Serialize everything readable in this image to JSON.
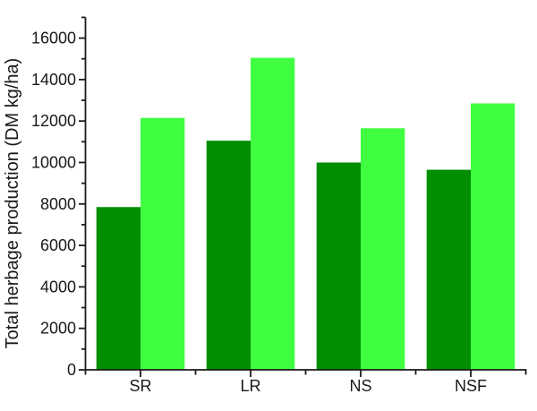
{
  "chart_data": {
    "type": "bar",
    "title": "",
    "xlabel": "",
    "ylabel": "Total herbage production (DM kg/ha)",
    "categories": [
      "SR",
      "LR",
      "NS",
      "NSF"
    ],
    "series": [
      {
        "name": "dark-green-series",
        "color": "#008f00",
        "values": [
          7850,
          11050,
          10000,
          9650
        ]
      },
      {
        "name": "light-green-series",
        "color": "#40ff40",
        "values": [
          12150,
          15050,
          11650,
          12850
        ]
      }
    ],
    "ylim": [
      0,
      17000
    ],
    "y_major_step": 2000,
    "y_minor_step": 1000,
    "y_tick_labels": [
      "0",
      "2000",
      "4000",
      "6000",
      "8000",
      "10000",
      "12000",
      "14000",
      "16000"
    ],
    "grid": false,
    "legend_position": "none",
    "axis_color": "#1a1a1a",
    "background_color": "#ffffff",
    "bar_gap_within_group": 0,
    "orientation": "vertical"
  }
}
